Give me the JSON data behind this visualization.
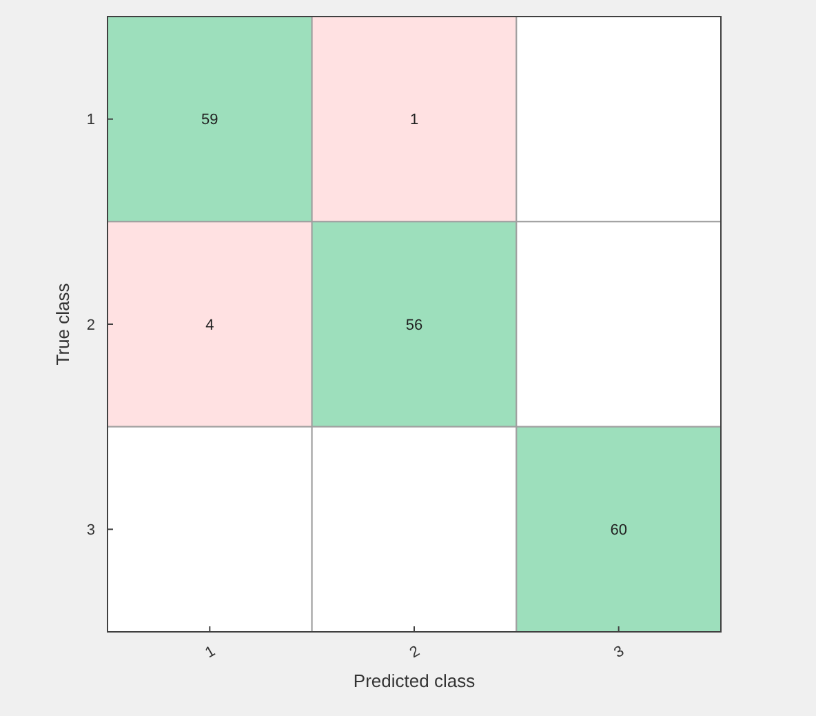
{
  "chart_data": {
    "type": "heatmap",
    "xlabel": "Predicted class",
    "ylabel": "True class",
    "categories": [
      "1",
      "2",
      "3"
    ],
    "y_categories": [
      "1",
      "2",
      "3"
    ],
    "cells": [
      [
        59,
        1,
        null
      ],
      [
        4,
        56,
        null
      ],
      [
        null,
        null,
        60
      ]
    ],
    "colors": [
      [
        "#9ddfbc",
        "#ffe1e2",
        null
      ],
      [
        "#ffe1e2",
        "#9ddfbc",
        null
      ],
      [
        null,
        null,
        "#9ddfbc"
      ]
    ],
    "data_labels": true
  }
}
